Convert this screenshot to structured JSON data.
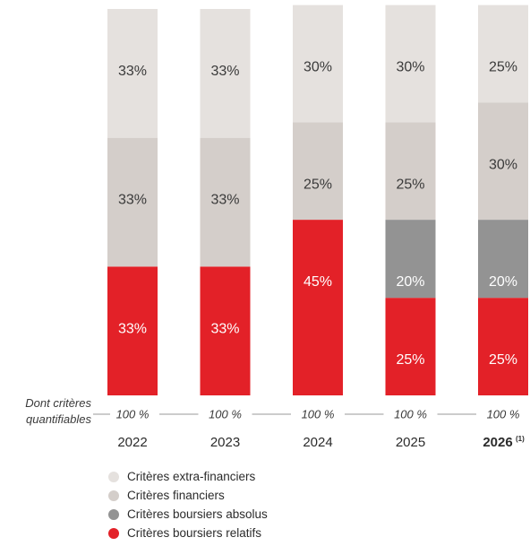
{
  "chart_data": {
    "type": "bar",
    "stacked": true,
    "categories": [
      "2022",
      "2023",
      "2024",
      "2025",
      "2026"
    ],
    "category_notes": [
      "",
      "",
      "",
      "",
      "(1)"
    ],
    "bold_categories": [
      "2026"
    ],
    "ylim": [
      0,
      100
    ],
    "series": [
      {
        "name": "Critères boursiers relatifs",
        "color": "#e32128",
        "values": [
          33,
          33,
          45,
          25,
          25
        ],
        "labels": [
          "33%",
          "33%",
          "45%",
          "25%",
          "25%"
        ]
      },
      {
        "name": "Critères boursiers absolus",
        "color": "#939393",
        "values": [
          0,
          0,
          0,
          20,
          20
        ],
        "labels": [
          "",
          "",
          "",
          "20%",
          "20%"
        ]
      },
      {
        "name": "Critères financiers",
        "color": "#d4ceca",
        "values": [
          33,
          33,
          25,
          25,
          30
        ],
        "labels": [
          "33%",
          "33%",
          "25%",
          "25%",
          "30%"
        ]
      },
      {
        "name": "Critères extra-financiers",
        "color": "#e5e1de",
        "values": [
          33,
          33,
          30,
          30,
          25
        ],
        "labels": [
          "33%",
          "33%",
          "30%",
          "30%",
          "25%"
        ]
      }
    ],
    "quantifiable_row": {
      "label_line1": "Dont critères",
      "label_line2": "quantifiables",
      "values": [
        "100 %",
        "100 %",
        "100 %",
        "100 %",
        "100 %"
      ]
    },
    "legend": [
      {
        "label": "Critères extra-financiers",
        "color": "#e5e1de"
      },
      {
        "label": "Critères financiers",
        "color": "#d4ceca"
      },
      {
        "label": "Critères boursiers absolus",
        "color": "#939393"
      },
      {
        "label": "Critères boursiers relatifs",
        "color": "#e32128"
      }
    ],
    "legend_position": "bottom-left"
  }
}
